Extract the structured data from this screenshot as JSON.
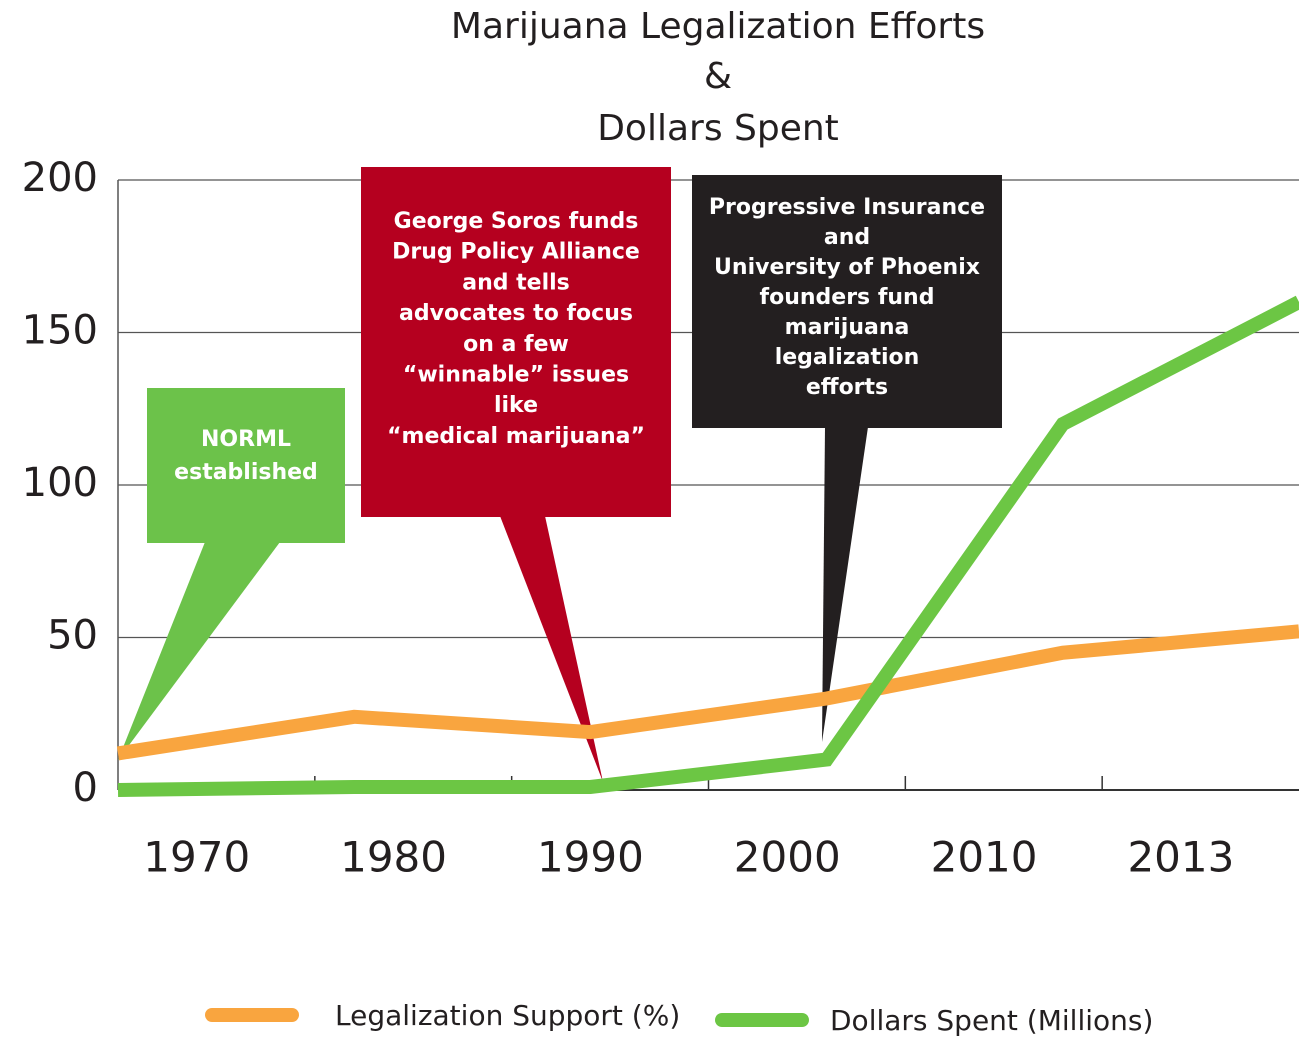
{
  "chart_data": {
    "type": "line",
    "title": [
      "Marijuana Legalization Efforts",
      "&",
      "Dollars Spent"
    ],
    "categories": [
      "1970",
      "1980",
      "1990",
      "2000",
      "2010",
      "2013"
    ],
    "series": [
      {
        "name": "Legalization Support (%)",
        "color": "#f9a53f",
        "values": [
          12,
          24,
          19,
          30,
          45,
          52
        ]
      },
      {
        "name": "Dollars Spent (Millions)",
        "color": "#6cc644",
        "values": [
          0,
          1,
          1,
          10,
          120,
          160
        ]
      }
    ],
    "ylim": [
      0,
      200
    ],
    "yticks": [
      0,
      50,
      100,
      150,
      200
    ],
    "grid": true,
    "legend": "bottom",
    "annotations": [
      {
        "lines": [
          "NORML",
          "established"
        ],
        "color": "#6cc24a"
      },
      {
        "lines": [
          "George Soros funds",
          "Drug Policy Alliance",
          "and tells",
          "advocates to focus",
          "on a few",
          "“winnable” issues",
          "like",
          "“medical marijuana”"
        ],
        "color": "#b5001f"
      },
      {
        "lines": [
          "Progressive Insurance",
          "and",
          "University of Phoenix",
          "founders fund",
          "marijuana",
          "legalization",
          "efforts"
        ],
        "color": "#231f20"
      }
    ]
  }
}
